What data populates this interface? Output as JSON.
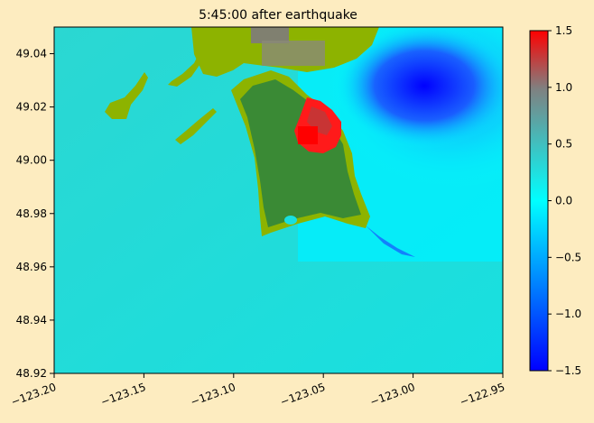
{
  "chart_data": {
    "type": "heatmap",
    "title": "5:45:00 after earthquake",
    "xlabel": "",
    "ylabel": "",
    "xlim": [
      -123.2,
      -122.95
    ],
    "ylim": [
      48.92,
      49.05
    ],
    "x_ticks": [
      -123.2,
      -123.15,
      -123.1,
      -123.05,
      -123.0,
      -122.95
    ],
    "x_tick_labels": [
      "−123.20",
      "−123.15",
      "−123.10",
      "−123.05",
      "−123.00",
      "−122.95"
    ],
    "y_ticks": [
      48.92,
      48.94,
      48.96,
      48.98,
      49.0,
      49.02,
      49.04
    ],
    "y_tick_labels": [
      "48.92",
      "48.94",
      "48.96",
      "48.98",
      "49.00",
      "49.02",
      "49.04"
    ],
    "colorbar": {
      "range": [
        -1.5,
        1.5
      ],
      "ticks": [
        -1.5,
        -1.0,
        -0.5,
        0.0,
        0.5,
        1.0,
        1.5
      ],
      "tick_labels": [
        "−1.5",
        "−1.0",
        "−0.5",
        "0.0",
        "0.5",
        "1.0",
        "1.5"
      ],
      "colors": {
        "min": "#0000ff",
        "mid": "#00ffff",
        "upper": "#808080",
        "max": "#ff0000"
      }
    },
    "land_colors": [
      "#3a8a35",
      "#8db300"
    ],
    "grid": false
  }
}
